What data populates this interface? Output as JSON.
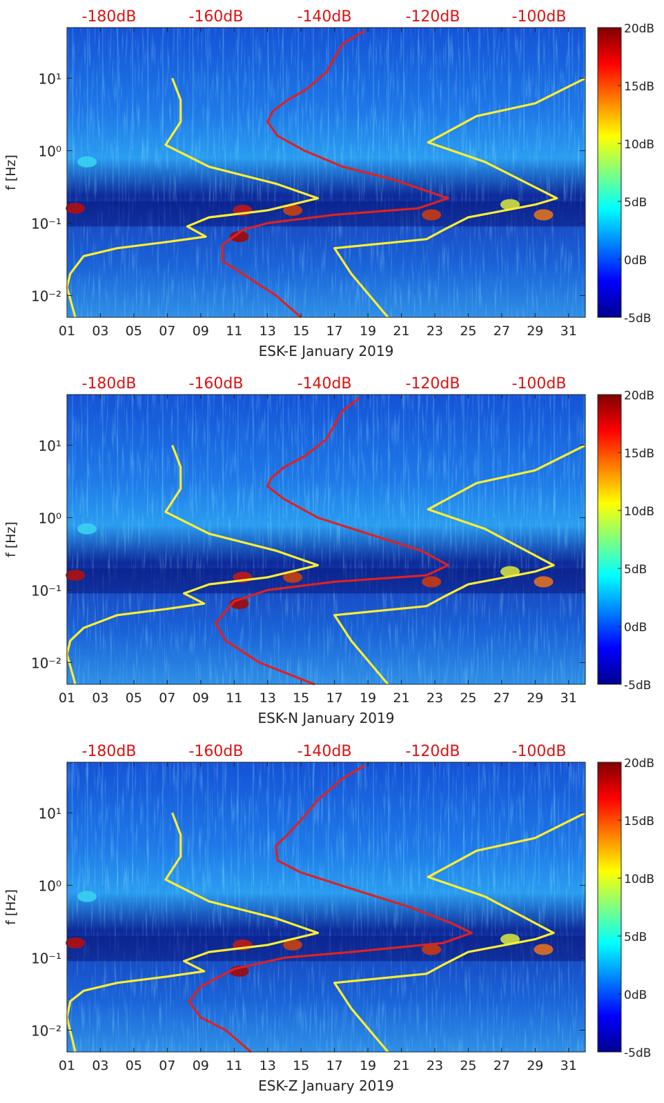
{
  "colors": {
    "red_curve": "#dd2222",
    "yellow_curve": "#ffee33",
    "top_label": "#dd1111",
    "text": "#222222"
  },
  "colorbar": {
    "labels": [
      "20dB",
      "15dB",
      "10dB",
      "5dB",
      "0dB",
      "-5dB"
    ],
    "range": [
      -5,
      20
    ]
  },
  "chart_data": [
    {
      "type": "heatmap",
      "title": "ESK-E January 2019",
      "xlabel": "ESK-E January 2019",
      "ylabel": "f [Hz]",
      "x_ticks": [
        "01",
        "03",
        "05",
        "07",
        "09",
        "11",
        "13",
        "15",
        "17",
        "19",
        "21",
        "23",
        "25",
        "27",
        "29",
        "31"
      ],
      "y_ticks": [
        "10¹",
        "10⁰",
        "10⁻¹",
        "10⁻²"
      ],
      "top_ticks": [
        "-180dB",
        "-160dB",
        "-140dB",
        "-120dB",
        "-100dB"
      ],
      "xlim": [
        1,
        32
      ],
      "ylim": [
        0.005,
        50
      ],
      "colorbar_range": [
        -5,
        20
      ],
      "series": [
        {
          "name": "red",
          "points": [
            [
              18.8,
              45
            ],
            [
              17.5,
              30
            ],
            [
              16.5,
              12
            ],
            [
              15.3,
              7
            ],
            [
              14.2,
              5
            ],
            [
              13.3,
              3.5
            ],
            [
              13.0,
              2.5
            ],
            [
              13.6,
              1.6
            ],
            [
              15.2,
              1.0
            ],
            [
              17.5,
              0.6
            ],
            [
              20.5,
              0.4
            ],
            [
              23.8,
              0.22
            ],
            [
              22,
              0.16
            ],
            [
              17,
              0.13
            ],
            [
              13,
              0.1
            ],
            [
              11.5,
              0.08
            ],
            [
              10.3,
              0.05
            ],
            [
              10.3,
              0.03
            ],
            [
              11.5,
              0.02
            ],
            [
              13.5,
              0.01
            ],
            [
              15.0,
              0.005
            ]
          ]
        },
        {
          "name": "yellow-left",
          "points": [
            [
              7.3,
              10
            ],
            [
              7.8,
              5
            ],
            [
              7.8,
              2.5
            ],
            [
              6.9,
              1.2
            ],
            [
              9.5,
              0.6
            ],
            [
              13.5,
              0.35
            ],
            [
              16.0,
              0.22
            ],
            [
              13,
              0.15
            ],
            [
              9.5,
              0.12
            ],
            [
              8.2,
              0.09
            ],
            [
              9.3,
              0.065
            ],
            [
              7,
              0.055
            ],
            [
              4,
              0.045
            ],
            [
              2.0,
              0.035
            ],
            [
              1.2,
              0.02
            ],
            [
              1.0,
              0.013
            ],
            [
              1.5,
              0.005
            ]
          ]
        },
        {
          "name": "yellow-right",
          "points": [
            [
              32,
              10
            ],
            [
              29,
              4.5
            ],
            [
              25.5,
              3.0
            ],
            [
              22.6,
              1.3
            ],
            [
              26,
              0.7
            ],
            [
              30.3,
              0.22
            ],
            [
              29,
              0.18
            ],
            [
              25,
              0.12
            ],
            [
              23.5,
              0.08
            ],
            [
              22.5,
              0.06
            ],
            [
              17,
              0.045
            ],
            [
              18,
              0.02
            ],
            [
              20.2,
              0.005
            ]
          ]
        }
      ]
    },
    {
      "type": "heatmap",
      "title": "ESK-N January 2019",
      "xlabel": "ESK-N January 2019",
      "ylabel": "f [Hz]",
      "x_ticks": [
        "01",
        "03",
        "05",
        "07",
        "09",
        "11",
        "13",
        "15",
        "17",
        "19",
        "21",
        "23",
        "25",
        "27",
        "29",
        "31"
      ],
      "y_ticks": [
        "10¹",
        "10⁰",
        "10⁻¹",
        "10⁻²"
      ],
      "top_ticks": [
        "-180dB",
        "-160dB",
        "-140dB",
        "-120dB",
        "-100dB"
      ],
      "xlim": [
        1,
        32
      ],
      "ylim": [
        0.005,
        50
      ],
      "colorbar_range": [
        -5,
        20
      ],
      "series": [
        {
          "name": "red",
          "points": [
            [
              18.5,
              45
            ],
            [
              17.5,
              30
            ],
            [
              16.5,
              12
            ],
            [
              15.2,
              7
            ],
            [
              14.0,
              5
            ],
            [
              13.2,
              3.5
            ],
            [
              13.0,
              2.7
            ],
            [
              14.0,
              1.8
            ],
            [
              16.0,
              1.0
            ],
            [
              19.5,
              0.55
            ],
            [
              22.2,
              0.35
            ],
            [
              23.8,
              0.22
            ],
            [
              22.5,
              0.16
            ],
            [
              17,
              0.13
            ],
            [
              13,
              0.1
            ],
            [
              11,
              0.07
            ],
            [
              9.9,
              0.035
            ],
            [
              10.5,
              0.02
            ],
            [
              12.5,
              0.01
            ],
            [
              15.8,
              0.005
            ]
          ]
        },
        {
          "name": "yellow-left",
          "points": [
            [
              7.3,
              10
            ],
            [
              7.8,
              5
            ],
            [
              7.8,
              2.5
            ],
            [
              6.9,
              1.2
            ],
            [
              9.5,
              0.6
            ],
            [
              13.5,
              0.35
            ],
            [
              16.0,
              0.22
            ],
            [
              13,
              0.15
            ],
            [
              9.5,
              0.12
            ],
            [
              8.0,
              0.09
            ],
            [
              9.2,
              0.065
            ],
            [
              7,
              0.055
            ],
            [
              4,
              0.045
            ],
            [
              2.0,
              0.03
            ],
            [
              1.2,
              0.02
            ],
            [
              1.0,
              0.013
            ],
            [
              1.5,
              0.005
            ]
          ]
        },
        {
          "name": "yellow-right",
          "points": [
            [
              32,
              10
            ],
            [
              29,
              4.5
            ],
            [
              25.5,
              3.0
            ],
            [
              22.6,
              1.3
            ],
            [
              26,
              0.7
            ],
            [
              30.1,
              0.22
            ],
            [
              29,
              0.18
            ],
            [
              25,
              0.12
            ],
            [
              23.5,
              0.08
            ],
            [
              22.5,
              0.06
            ],
            [
              17,
              0.045
            ],
            [
              18,
              0.02
            ],
            [
              20.2,
              0.005
            ]
          ]
        }
      ]
    },
    {
      "type": "heatmap",
      "title": "ESK-Z January 2019",
      "xlabel": "ESK-Z January 2019",
      "ylabel": "f [Hz]",
      "x_ticks": [
        "01",
        "03",
        "05",
        "07",
        "09",
        "11",
        "13",
        "15",
        "17",
        "19",
        "21",
        "23",
        "25",
        "27",
        "29",
        "31"
      ],
      "y_ticks": [
        "10¹",
        "10⁰",
        "10⁻¹",
        "10⁻²"
      ],
      "top_ticks": [
        "-180dB",
        "-160dB",
        "-140dB",
        "-120dB",
        "-100dB"
      ],
      "xlim": [
        1,
        32
      ],
      "ylim": [
        0.005,
        50
      ],
      "colorbar_range": [
        -5,
        20
      ],
      "series": [
        {
          "name": "red",
          "points": [
            [
              18.8,
              45
            ],
            [
              17.5,
              30
            ],
            [
              16.0,
              15
            ],
            [
              15.0,
              8
            ],
            [
              14.2,
              5
            ],
            [
              13.5,
              3.5
            ],
            [
              13.6,
              2.2
            ],
            [
              15.0,
              1.5
            ],
            [
              18,
              0.9
            ],
            [
              21.5,
              0.5
            ],
            [
              24.0,
              0.3
            ],
            [
              25.2,
              0.22
            ],
            [
              23.5,
              0.16
            ],
            [
              18,
              0.12
            ],
            [
              14,
              0.1
            ],
            [
              11.0,
              0.07
            ],
            [
              9.0,
              0.04
            ],
            [
              8.3,
              0.025
            ],
            [
              9.0,
              0.015
            ],
            [
              10.5,
              0.01
            ],
            [
              12.0,
              0.005
            ]
          ]
        },
        {
          "name": "yellow-left",
          "points": [
            [
              7.3,
              10
            ],
            [
              7.8,
              5
            ],
            [
              7.8,
              2.5
            ],
            [
              6.9,
              1.2
            ],
            [
              9.5,
              0.6
            ],
            [
              13.5,
              0.35
            ],
            [
              16.0,
              0.22
            ],
            [
              13,
              0.15
            ],
            [
              9.5,
              0.12
            ],
            [
              8.0,
              0.09
            ],
            [
              9.2,
              0.065
            ],
            [
              7,
              0.055
            ],
            [
              4,
              0.045
            ],
            [
              2.0,
              0.035
            ],
            [
              1.2,
              0.025
            ],
            [
              1.0,
              0.015
            ],
            [
              1.5,
              0.005
            ]
          ]
        },
        {
          "name": "yellow-right",
          "points": [
            [
              32,
              10
            ],
            [
              29,
              4.5
            ],
            [
              25.5,
              3.0
            ],
            [
              22.6,
              1.3
            ],
            [
              26,
              0.7
            ],
            [
              30.1,
              0.22
            ],
            [
              29,
              0.18
            ],
            [
              25,
              0.12
            ],
            [
              23.5,
              0.08
            ],
            [
              22.5,
              0.06
            ],
            [
              17,
              0.045
            ],
            [
              18,
              0.02
            ],
            [
              20.2,
              0.005
            ]
          ]
        }
      ]
    }
  ]
}
